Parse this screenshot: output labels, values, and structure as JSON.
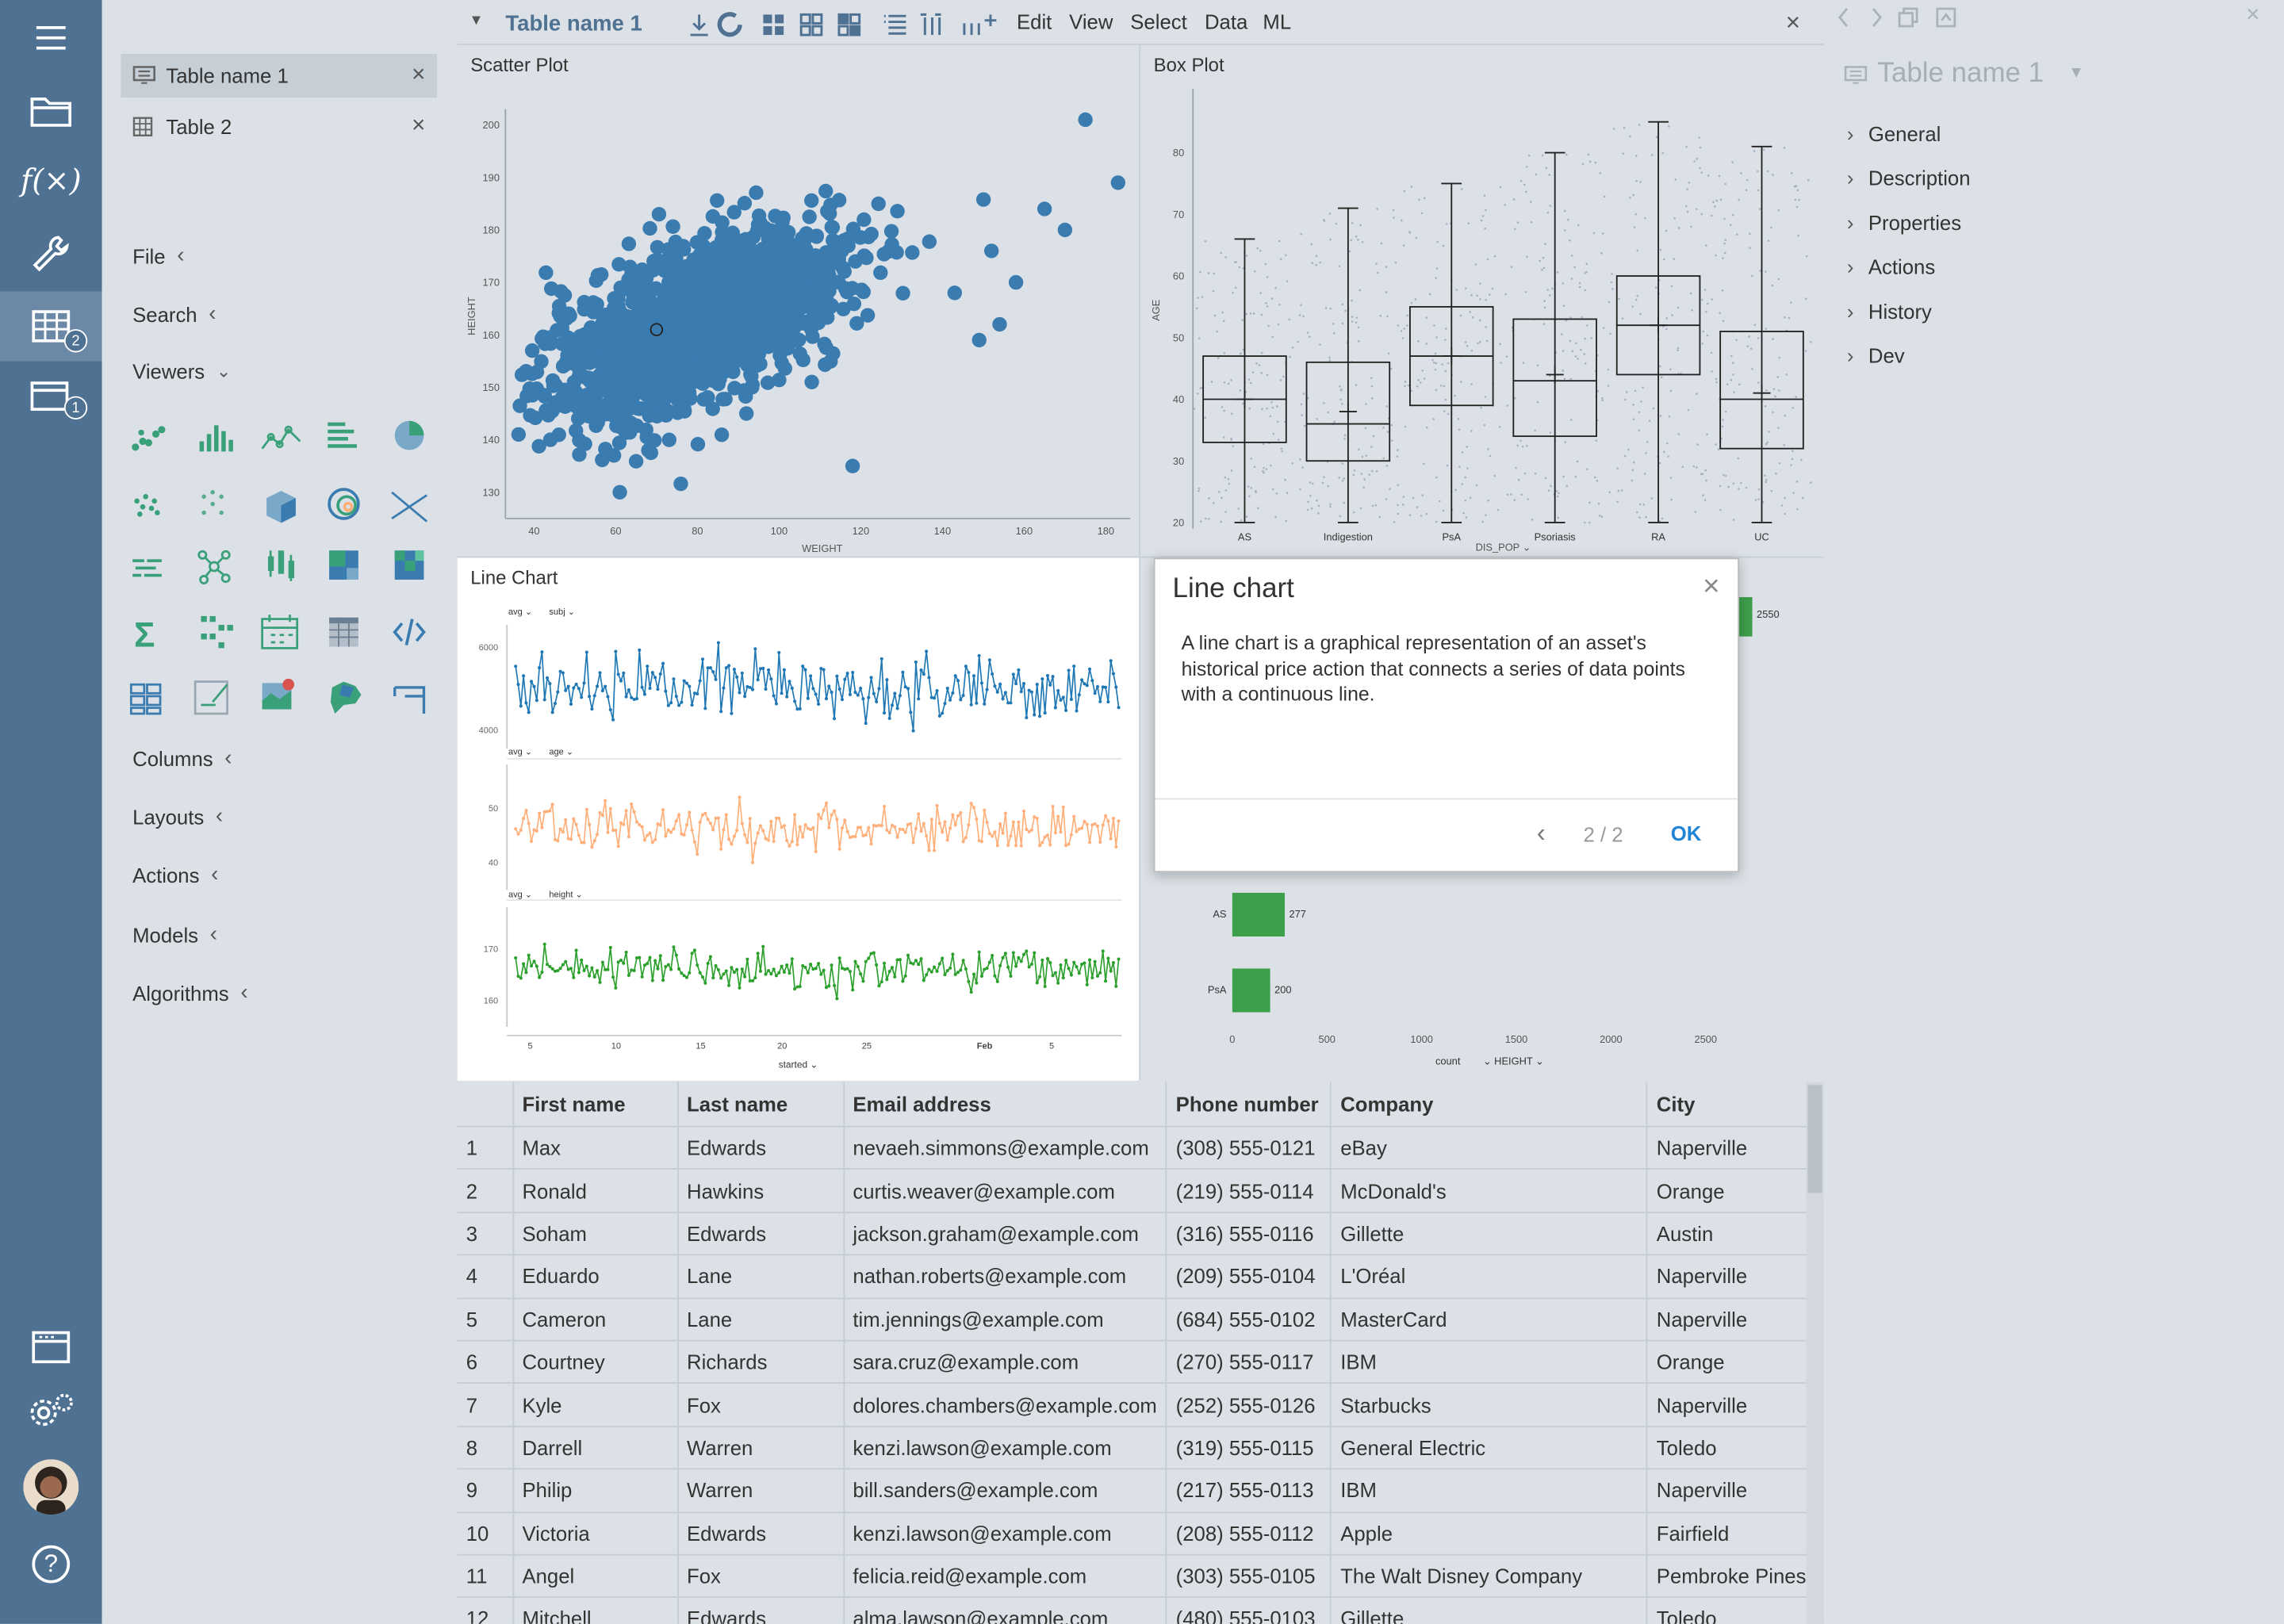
{
  "rail": {
    "items": [
      {
        "name": "menu-icon"
      },
      {
        "name": "folder-icon"
      },
      {
        "name": "functions-icon",
        "label": "f(×)"
      },
      {
        "name": "wrench-icon"
      },
      {
        "name": "table-icon",
        "badge": "2"
      },
      {
        "name": "projects-icon",
        "badge": "1"
      }
    ],
    "bottom": [
      {
        "name": "window-icon"
      },
      {
        "name": "settings-icon"
      },
      {
        "name": "avatar"
      },
      {
        "name": "help-icon",
        "label": "?"
      }
    ]
  },
  "tabs": [
    {
      "label": "Table name  1"
    },
    {
      "label": "Table 2"
    }
  ],
  "sections": {
    "file": "File",
    "search": "Search",
    "viewers": "Viewers",
    "columns": "Columns",
    "layouts": "Layouts",
    "actions": "Actions",
    "models": "Models",
    "algorithms": "Algorithms"
  },
  "toolbar": {
    "title": "Table name 1",
    "menus": [
      "Edit",
      "View",
      "Select",
      "Data",
      "ML"
    ]
  },
  "scatter": {
    "title": "Scatter Plot",
    "xlabel": "WEIGHT",
    "ylabel": "HEIGHT",
    "chart_data": {
      "type": "scatter",
      "title": "Scatter Plot",
      "xlabel": "WEIGHT",
      "ylabel": "HEIGHT",
      "xlim": [
        33,
        186
      ],
      "ylim": [
        125,
        203
      ],
      "xticks": [
        40,
        60,
        80,
        100,
        120,
        140,
        160,
        180
      ],
      "yticks": [
        130,
        140,
        150,
        160,
        170,
        180,
        190,
        200
      ],
      "cluster": {
        "center": [
          80,
          162
        ],
        "spread": [
          18,
          9
        ],
        "count": 1600
      },
      "outliers": [
        [
          175,
          201
        ],
        [
          183,
          189
        ],
        [
          143,
          168
        ],
        [
          152,
          176
        ],
        [
          158,
          170
        ],
        [
          165,
          184
        ],
        [
          170,
          180
        ],
        [
          149,
          159
        ],
        [
          154,
          162
        ],
        [
          118,
          135
        ],
        [
          68,
          138
        ],
        [
          44,
          140
        ],
        [
          61,
          130
        ],
        [
          78,
          149
        ],
        [
          92,
          145
        ],
        [
          60,
          145
        ]
      ]
    }
  },
  "boxplot": {
    "title": "Box Plot",
    "ylabel": "AGE",
    "xlabel": "DIS_POP",
    "chart_data": {
      "type": "box",
      "ylim": [
        19,
        88
      ],
      "yticks": [
        20,
        30,
        40,
        50,
        60,
        70,
        80
      ],
      "categories": [
        "AS",
        "Indigestion",
        "PsA",
        "Psoriasis",
        "RA",
        "UC"
      ],
      "boxes": [
        {
          "min": 20,
          "q1": 33,
          "median": 40,
          "q3": 47,
          "max": 66,
          "mean": 40
        },
        {
          "min": 20,
          "q1": 30,
          "median": 36,
          "q3": 46,
          "max": 71,
          "mean": 38
        },
        {
          "min": 20,
          "q1": 39,
          "median": 47,
          "q3": 55,
          "max": 75,
          "mean": 47
        },
        {
          "min": 20,
          "q1": 34,
          "median": 43,
          "q3": 53,
          "max": 80,
          "mean": 44
        },
        {
          "min": 20,
          "q1": 44,
          "median": 52,
          "q3": 60,
          "max": 85,
          "mean": 52
        },
        {
          "min": 20,
          "q1": 32,
          "median": 40,
          "q3": 51,
          "max": 81,
          "mean": 41
        }
      ]
    }
  },
  "linechart": {
    "title": "Line Chart",
    "xlabel": "started",
    "xticks": [
      "5",
      "10",
      "15",
      "20",
      "25",
      "Feb",
      "5"
    ],
    "chart_data": {
      "type": "line",
      "series": [
        {
          "name": "subj",
          "agg": "avg",
          "color": "#1f77b4",
          "ylim": [
            3700,
            6400
          ],
          "yticks": [
            4000,
            6000
          ],
          "base": 5000,
          "amp": 700
        },
        {
          "name": "age",
          "agg": "avg",
          "color": "#ffb07a",
          "ylim": [
            36,
            57
          ],
          "yticks": [
            40,
            50
          ],
          "base": 46,
          "amp": 4
        },
        {
          "name": "height",
          "agg": "avg",
          "color": "#2ca02c",
          "ylim": [
            156,
            177
          ],
          "yticks": [
            160,
            170
          ],
          "base": 166,
          "amp": 3.5
        }
      ]
    }
  },
  "barchart": {
    "xlabel": "count",
    "ylabel": "HEIGHT",
    "xticks": [
      "0",
      "500",
      "1000",
      "1500",
      "2000",
      "2500"
    ],
    "chart_data": {
      "type": "bar",
      "categories": [
        "AS",
        "PsA"
      ],
      "values": [
        277,
        200
      ],
      "hidden_top": 2550,
      "xlim": [
        0,
        2700
      ]
    }
  },
  "dialog": {
    "title": "Line chart",
    "body": "A line chart is a graphical representation of an asset's historical price action that connects a series of data points with a continuous line.",
    "page": "2 / 2",
    "ok": "OK"
  },
  "props": {
    "title": "Table name 1",
    "items": [
      "General",
      "Description",
      "Properties",
      "Actions",
      "History",
      "Dev"
    ]
  },
  "grid": {
    "columns": [
      "",
      "First name",
      "Last name",
      "Email address",
      "Phone number",
      "Company",
      "City"
    ],
    "rows": [
      [
        "1",
        "Max",
        "Edwards",
        "nevaeh.simmons@example.com",
        "(308) 555-0121",
        "eBay",
        "Naperville"
      ],
      [
        "2",
        "Ronald",
        "Hawkins",
        "curtis.weaver@example.com",
        "(219) 555-0114",
        "McDonald's",
        "Orange"
      ],
      [
        "3",
        "Soham",
        "Edwards",
        "jackson.graham@example.com",
        "(316) 555-0116",
        "Gillette",
        "Austin"
      ],
      [
        "4",
        "Eduardo",
        "Lane",
        "nathan.roberts@example.com",
        "(209) 555-0104",
        "L'Oréal",
        "Naperville"
      ],
      [
        "5",
        "Cameron",
        "Lane",
        "tim.jennings@example.com",
        "(684) 555-0102",
        "MasterCard",
        "Naperville"
      ],
      [
        "6",
        "Courtney",
        "Richards",
        "sara.cruz@example.com",
        "(270) 555-0117",
        "IBM",
        "Orange"
      ],
      [
        "7",
        "Kyle",
        "Fox",
        "dolores.chambers@example.com",
        "(252) 555-0126",
        "Starbucks",
        "Naperville"
      ],
      [
        "8",
        "Darrell",
        "Warren",
        "kenzi.lawson@example.com",
        "(319) 555-0115",
        "General Electric",
        "Toledo"
      ],
      [
        "9",
        "Philip",
        "Warren",
        "bill.sanders@example.com",
        "(217) 555-0113",
        "IBM",
        "Naperville"
      ],
      [
        "10",
        "Victoria",
        "Edwards",
        "kenzi.lawson@example.com",
        "(208) 555-0112",
        "Apple",
        "Fairfield"
      ],
      [
        "11",
        "Angel",
        "Fox",
        "felicia.reid@example.com",
        "(303) 555-0105",
        "The Walt Disney Company",
        "Pembroke Pines"
      ],
      [
        "12",
        "Mitchell",
        "Edwards",
        "alma.lawson@example.com",
        "(480) 555-0103",
        "Gillette",
        "Toledo"
      ]
    ]
  },
  "colors": {
    "rail": "#4f7192",
    "accent": "#2083d5",
    "scatter_dot": "#3a7bb0",
    "bar": "#3d9f4a",
    "viewer_icon": "#3aa07a"
  }
}
